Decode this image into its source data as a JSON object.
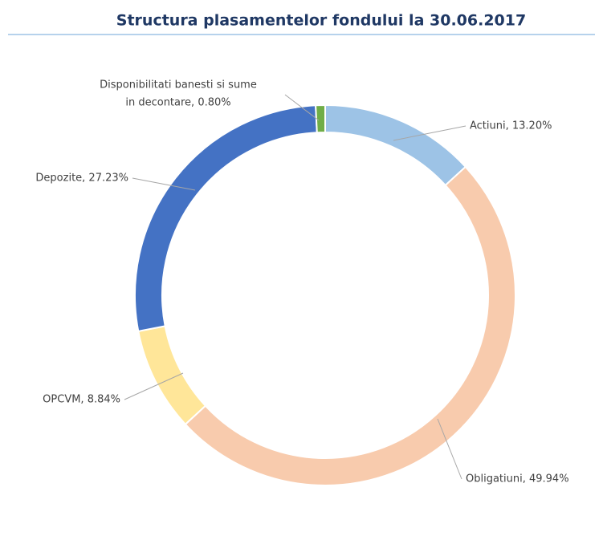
{
  "chart_data": {
    "type": "donut",
    "title": "Structura plasamentelor fondului la 30.06.2017",
    "labels": [
      [
        "Actiuni, 13.20%"
      ],
      [
        "Obligatiuni, 49.94%"
      ],
      [
        "OPCVM, 8.84%"
      ],
      [
        "Depozite, 27.23%"
      ],
      [
        "Disponibilitati banesti si sume",
        "in decontare, 0.80%"
      ]
    ],
    "values": [
      13.2,
      49.94,
      8.84,
      27.23,
      0.8
    ],
    "colors": [
      "#9dc3e6",
      "#f8cbad",
      "#ffe699",
      "#4472c4",
      "#70ad47"
    ]
  }
}
